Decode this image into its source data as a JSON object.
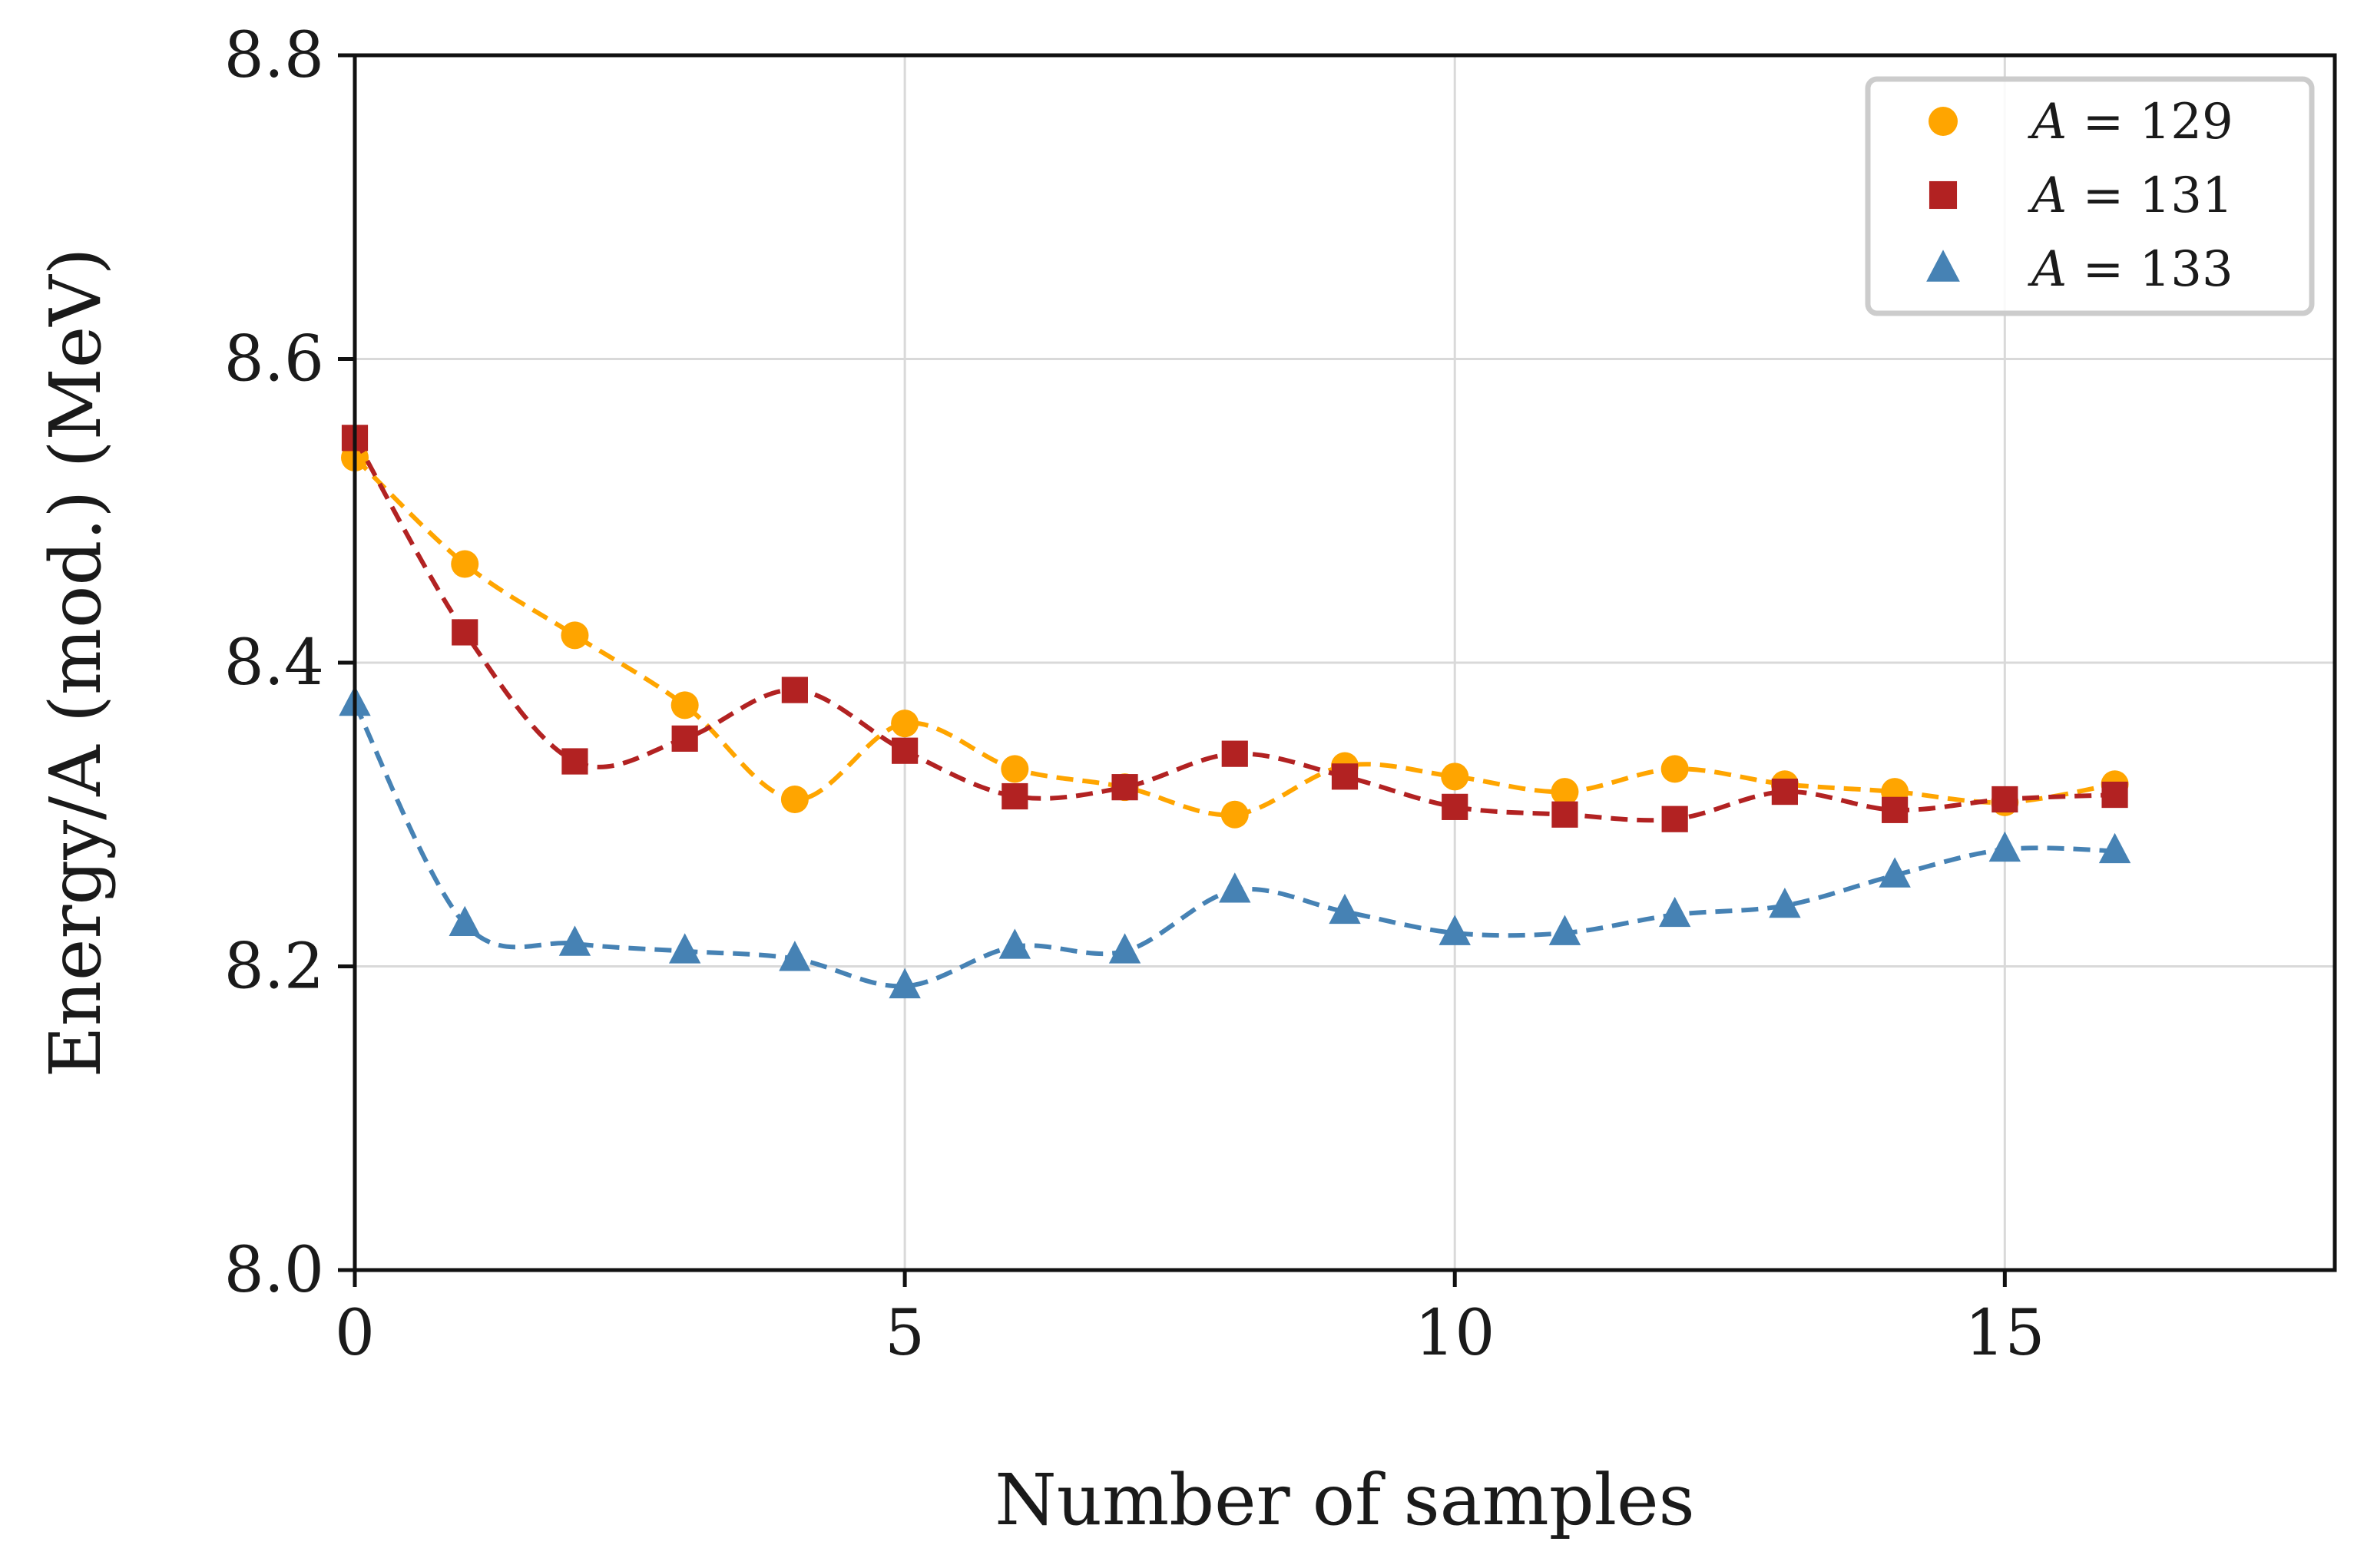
{
  "chart_data": {
    "type": "line",
    "title": "",
    "xlabel": "Number of samples",
    "ylabel": "Energy/A (mod.) (MeV)",
    "xlim": [
      0,
      18
    ],
    "ylim": [
      8.0,
      8.8
    ],
    "xticks": [
      0,
      5,
      10,
      15
    ],
    "xtick_labels": [
      "0",
      "5",
      "10",
      "15"
    ],
    "yticks": [
      8.0,
      8.2,
      8.4,
      8.6,
      8.8
    ],
    "ytick_labels": [
      "8.0",
      "8.2",
      "8.4",
      "8.6",
      "8.8"
    ],
    "grid": true,
    "legend_position": "top-right",
    "x": [
      0,
      1,
      2,
      3,
      4,
      5,
      6,
      7,
      8,
      9,
      10,
      11,
      12,
      13,
      14,
      15,
      16
    ],
    "series": [
      {
        "name": "A = 129",
        "legend_var": "A",
        "legend_rest": " = 129",
        "marker": "circle",
        "color": "#FFA500",
        "values": [
          8.535,
          8.465,
          8.418,
          8.372,
          8.31,
          8.36,
          8.33,
          8.318,
          8.3,
          8.332,
          8.325,
          8.315,
          8.33,
          8.32,
          8.315,
          8.308,
          8.32
        ]
      },
      {
        "name": "A = 131",
        "legend_var": "A",
        "legend_rest": " = 131",
        "marker": "square",
        "color": "#B22222",
        "values": [
          8.548,
          8.42,
          8.335,
          8.35,
          8.382,
          8.342,
          8.312,
          8.318,
          8.34,
          8.325,
          8.305,
          8.3,
          8.297,
          8.315,
          8.303,
          8.31,
          8.313
        ]
      },
      {
        "name": "A = 133",
        "legend_var": "A",
        "legend_rest": " = 133",
        "marker": "triangle",
        "color": "#4682B4",
        "values": [
          8.373,
          8.228,
          8.215,
          8.21,
          8.205,
          8.187,
          8.213,
          8.21,
          8.25,
          8.236,
          8.222,
          8.222,
          8.234,
          8.24,
          8.26,
          8.277,
          8.276
        ]
      }
    ]
  }
}
